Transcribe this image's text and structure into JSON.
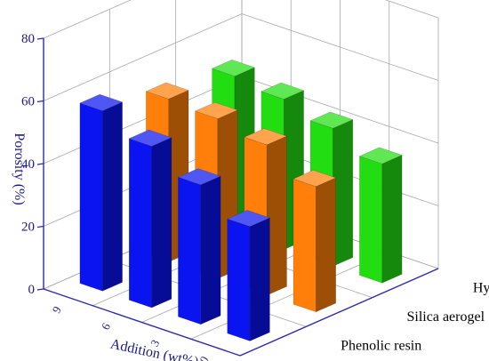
{
  "chart_data": {
    "type": "bar",
    "subtype": "3d-grouped-bar",
    "title": "",
    "ylabel": "Porosity (%)",
    "xlabel": "Addition (wt%)",
    "zlim": [
      0,
      80
    ],
    "z_ticks": [
      "0",
      "20",
      "40",
      "60",
      "80"
    ],
    "categories": [
      "9",
      "6",
      "3",
      "0"
    ],
    "series": [
      {
        "name": "Phenolic resin",
        "color": "#0a14f0",
        "values": [
          57.5,
          51.5,
          44.5,
          36.5
        ]
      },
      {
        "name": "Silica aerogel",
        "color": "#ff7f0a",
        "values": [
          52,
          51,
          48,
          40
        ]
      },
      {
        "name": "Hydrogen peroxide",
        "color": "#22dd11",
        "values": [
          50,
          48,
          44,
          38
        ]
      }
    ],
    "grid": true
  }
}
